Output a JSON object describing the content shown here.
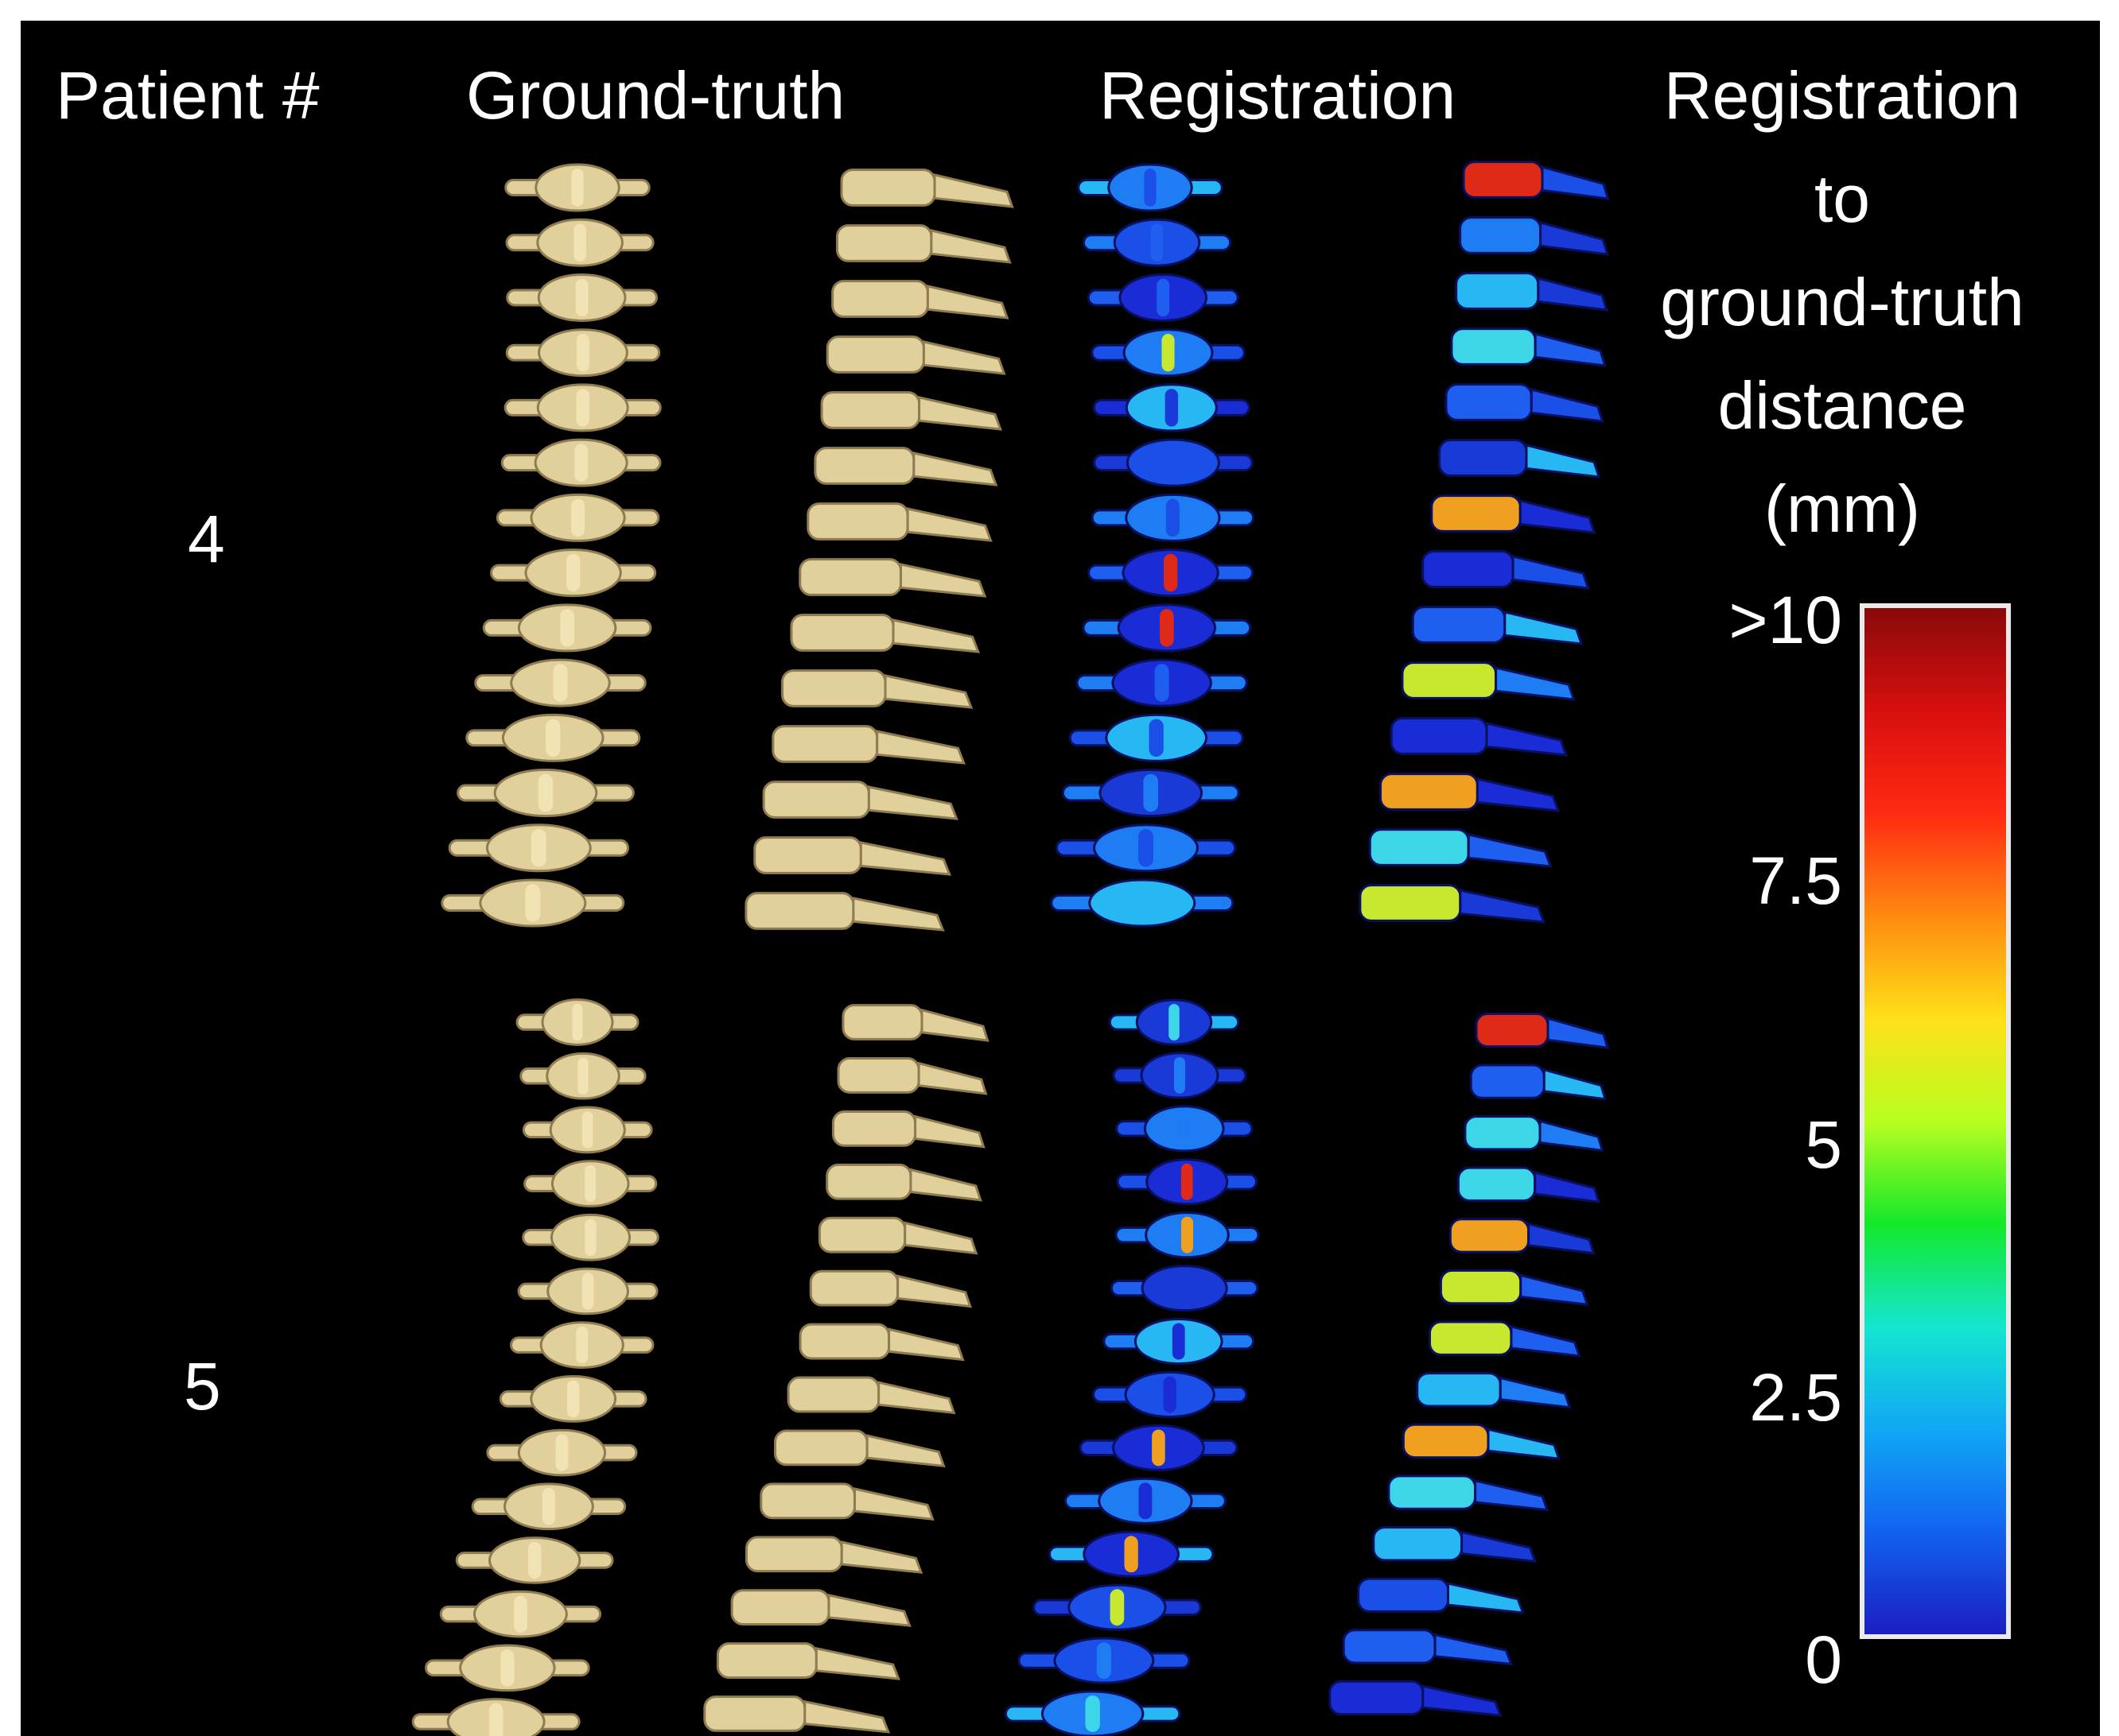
{
  "headers": {
    "patient": "Patient #",
    "ground_truth": "Ground-truth",
    "registration": "Registration",
    "distance_title": [
      "Registration",
      "to",
      "ground-truth",
      "distance",
      "(mm)"
    ]
  },
  "rows": [
    {
      "patient_id": "4"
    },
    {
      "patient_id": "5"
    }
  ],
  "colorbar": {
    "ticks": [
      ">10",
      "7.5",
      "5",
      "2.5",
      "0"
    ],
    "colors": [
      "#8b0a0a",
      "#d80f0f",
      "#ff2a12",
      "#ff8a10",
      "#ffe018",
      "#b8ff20",
      "#13e82a",
      "#14e6d0",
      "#10a8f4",
      "#1262f0",
      "#1b1ec0"
    ]
  },
  "colors": {
    "background": "#000000",
    "bone": "#e2d09c",
    "bone_shadow": "#8f7c50"
  }
}
